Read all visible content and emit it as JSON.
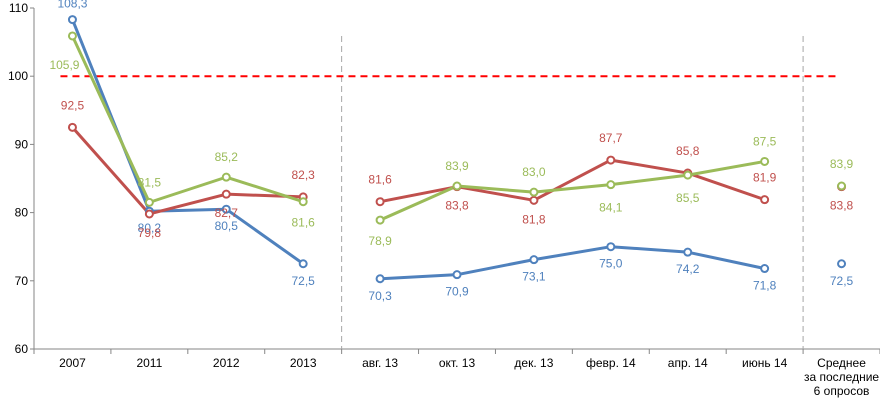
{
  "chart_data": {
    "type": "line",
    "title": "",
    "xlabel": "",
    "ylabel": "",
    "ylim": [
      60,
      110
    ],
    "yticks": [
      60,
      70,
      80,
      90,
      100,
      110
    ],
    "grid": false,
    "reference_line": {
      "value": 100,
      "color": "#ff0000",
      "style": "dashed"
    },
    "categories": [
      "2007",
      "2011",
      "2012",
      "2013",
      "авг. 13",
      "окт. 13",
      "дек. 13",
      "февр. 14",
      "апр. 14",
      "июнь 14",
      "Среднее за последние 6 опросов"
    ],
    "category_lines": [
      [
        "2007"
      ],
      [
        "2011"
      ],
      [
        "2012"
      ],
      [
        "2013"
      ],
      [
        "авг. 13"
      ],
      [
        "окт. 13"
      ],
      [
        "дек. 13"
      ],
      [
        "февр. 14"
      ],
      [
        "апр. 14"
      ],
      [
        "июнь 14"
      ],
      [
        "Среднее",
        "за последние",
        "6 опросов"
      ]
    ],
    "separators_after_index": [
      3,
      9
    ],
    "series": [
      {
        "name": "blue",
        "color": "#4f81bd",
        "values": [
          108.3,
          80.2,
          80.5,
          72.5,
          70.3,
          70.9,
          73.1,
          75.0,
          74.2,
          71.8,
          72.5
        ],
        "labels": [
          "108,3",
          "80,2",
          "80,5",
          "72,5",
          "70,3",
          "70,9",
          "73,1",
          "75,0",
          "74,2",
          "71,8",
          "72,5"
        ],
        "segments": [
          [
            0,
            3
          ],
          [
            4,
            9
          ]
        ]
      },
      {
        "name": "red",
        "color": "#c0504d",
        "values": [
          92.5,
          79.8,
          82.7,
          82.3,
          81.6,
          83.8,
          81.8,
          87.7,
          85.8,
          81.9,
          83.8
        ],
        "labels": [
          "92,5",
          "79,8",
          "82,7",
          "82,3",
          "81,6",
          "83,8",
          "81,8",
          "87,7",
          "85,8",
          "81,9",
          "83,8"
        ],
        "segments": [
          [
            0,
            3
          ],
          [
            4,
            9
          ]
        ]
      },
      {
        "name": "green",
        "color": "#9bbb59",
        "values": [
          105.9,
          81.5,
          85.2,
          81.6,
          78.9,
          83.9,
          83.0,
          84.1,
          85.5,
          87.5,
          83.9
        ],
        "labels": [
          "105,9",
          "81,5",
          "85,2",
          "81,6",
          "78,9",
          "83,9",
          "83,0",
          "84,1",
          "85,5",
          "87,5",
          "83,9"
        ],
        "segments": [
          [
            0,
            3
          ],
          [
            4,
            9
          ]
        ]
      }
    ]
  }
}
